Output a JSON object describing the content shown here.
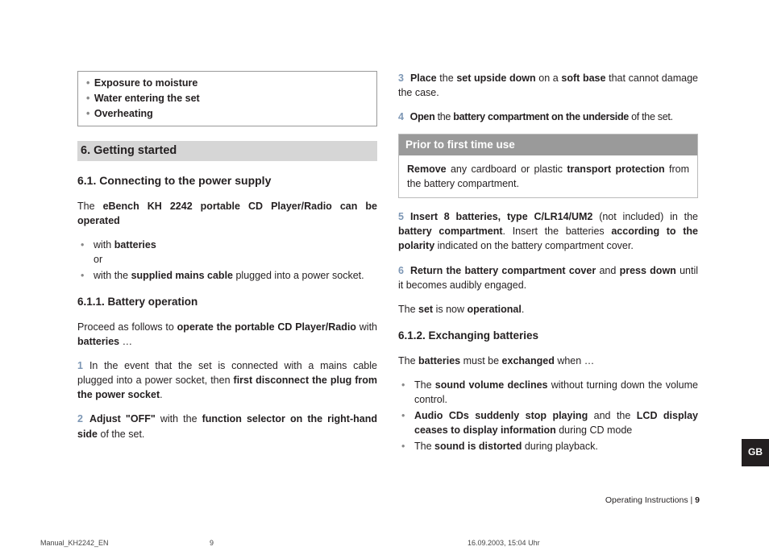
{
  "warn": {
    "i1": "Exposure to moisture",
    "i2": "Water entering the set",
    "i3": "Overheating"
  },
  "sec6": {
    "title": "6. Getting started"
  },
  "sec61": {
    "title": "6.1. Connecting to the power supply",
    "intro_a": "The ",
    "intro_b": "eBench KH 2242 portable CD Player/Radio can be operated",
    "li1_a": "with ",
    "li1_b": "batteries",
    "li1_c": "or",
    "li2_a": "with the ",
    "li2_b": "supplied mains cable",
    "li2_c": " plugged into a power socket."
  },
  "sec611": {
    "title": "6.1.1. Battery operation",
    "intro_a": "Proceed as follows to ",
    "intro_b": "operate the portable CD Player/Radio",
    "intro_c": " with ",
    "intro_d": "batteries",
    "intro_e": " …",
    "s1_a": "In the event that the set is connected with a mains cable plugged into a power socket, then ",
    "s1_b": "first disconnect the plug from the power socket",
    "s1_c": ".",
    "s2_a": "Adjust \"OFF\"",
    "s2_b": " with the ",
    "s2_c": "function selector on the right-hand side",
    "s2_d": " of the set.",
    "s3_a": "Place",
    "s3_b": " the ",
    "s3_c": "set upside down",
    "s3_d": " on a ",
    "s3_e": "soft base",
    "s3_f": " that cannot damage the case.",
    "s4_a": "Open",
    "s4_b": " the ",
    "s4_c": "battery compartment on the underside",
    "s4_d": " of the set.",
    "callout_title": "Prior to first time use",
    "callout_a": "Remove",
    "callout_b": " any cardboard or plastic ",
    "callout_c": "transport protection",
    "callout_d": " from the battery compartment.",
    "s5_a": "Insert 8 batteries, type C/LR14/UM2",
    "s5_b": " (not included) in the ",
    "s5_c": "battery compartment",
    "s5_d": ". Insert the batteries ",
    "s5_e": "according to the polarity",
    "s5_f": " indicated on the battery compartment cover.",
    "s6_a": "Return the battery compartment cover",
    "s6_b": " and ",
    "s6_c": "press down",
    "s6_d": " until it becomes audibly engaged.",
    "outro_a": "The ",
    "outro_b": "set",
    "outro_c": " is now ",
    "outro_d": "operational",
    "outro_e": "."
  },
  "sec612": {
    "title": "6.1.2. Exchanging batteries",
    "intro_a": "The ",
    "intro_b": "batteries",
    "intro_c": " must be ",
    "intro_d": "exchanged",
    "intro_e": " when …",
    "li1_a": "The ",
    "li1_b": "sound volume declines",
    "li1_c": " without turning down the volume control.",
    "li2_a": "Audio CDs suddenly stop playing",
    "li2_b": " and the ",
    "li2_c": "LCD display ceases to display information",
    "li2_d": " during CD mode",
    "li3_a": "The ",
    "li3_b": "sound is distorted",
    "li3_c": " during playback."
  },
  "lang": "GB",
  "footer": {
    "right_a": "Operating Instructions",
    "right_b": " 9",
    "file": "Manual_KH2242_EN",
    "page": "9",
    "ts": "16.09.2003, 15:04 Uhr"
  },
  "num": {
    "n1": "1",
    "n2": "2",
    "n3": "3",
    "n4": "4",
    "n5": "5",
    "n6": "6"
  }
}
